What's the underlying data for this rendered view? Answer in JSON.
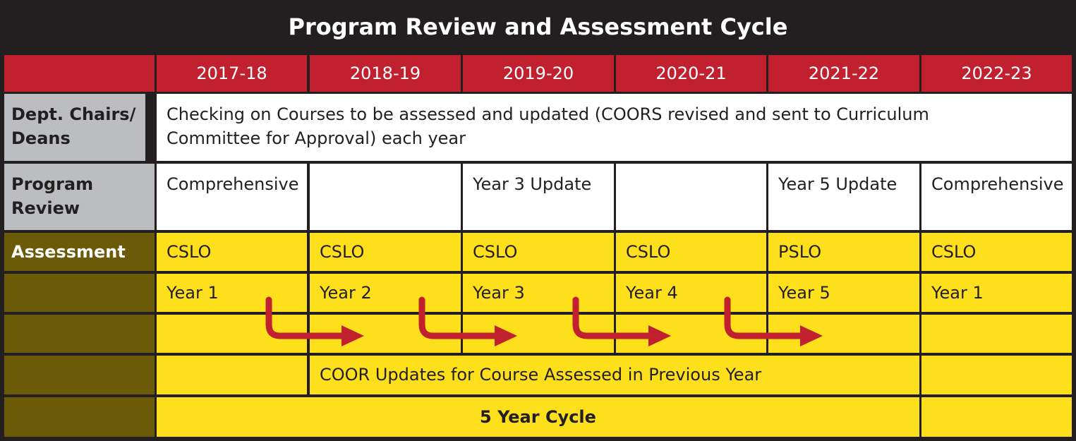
{
  "title": "Program Review and Assessment Cycle",
  "years": [
    "2017-18",
    "2018-19",
    "2019-20",
    "2020-21",
    "2021-22",
    "2022-23"
  ],
  "rows": {
    "dept": {
      "label": "Dept. Chairs/ Deans",
      "text": "Checking on Courses to be assessed and updated (COORS revised and sent to Curriculum Committee for Approval) each year"
    },
    "program_review": {
      "label": "Program Review",
      "cells": [
        "Comprehensive",
        "",
        "Year 3 Update",
        "",
        "Year 5 Update",
        "Comprehensive"
      ]
    },
    "assessment": {
      "label": "Assessment",
      "types": [
        "CSLO",
        "CSLO",
        "CSLO",
        "CSLO",
        "PSLO",
        "CSLO"
      ],
      "years": [
        "Year 1",
        "Year 2",
        "Year 3",
        "Year 4",
        "Year 5",
        "Year 1"
      ]
    },
    "coor_updates": "COOR Updates for Course Assessed in Previous Year",
    "cycle": "5 Year Cycle"
  },
  "colors": {
    "background": "#231f20",
    "header_red": "#c1202f",
    "label_gray": "#bbbdc0",
    "assessment_olive": "#6b5a08",
    "assessment_yellow": "#fedf1c",
    "arrow_red": "#c1202f"
  }
}
